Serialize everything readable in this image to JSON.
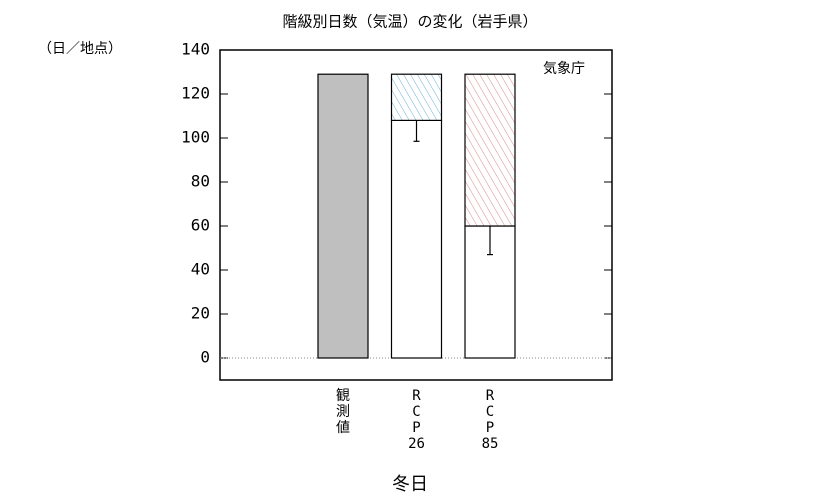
{
  "chart_data": {
    "type": "bar",
    "title": "階級別日数（気温）の変化（岩手県）",
    "y_unit": "（日／地点）",
    "annotation": "気象庁",
    "x_label": "冬日",
    "categories": [
      "観測値",
      "RCP26",
      "RCP85"
    ],
    "series": [
      {
        "values": [
          129,
          108,
          60
        ],
        "colors": [
          "#bfbfbf",
          "#ffffff",
          "#ffffff"
        ],
        "errors": [
          null,
          9.5,
          13
        ]
      },
      {
        "values": [
          null,
          21,
          69
        ],
        "colors": [
          null,
          "#6aaed6",
          "#d98a80"
        ],
        "hatch": true
      }
    ],
    "ylim": [
      -10,
      140
    ],
    "yticks": [
      0,
      20,
      40,
      60,
      80,
      100,
      120,
      140
    ]
  }
}
